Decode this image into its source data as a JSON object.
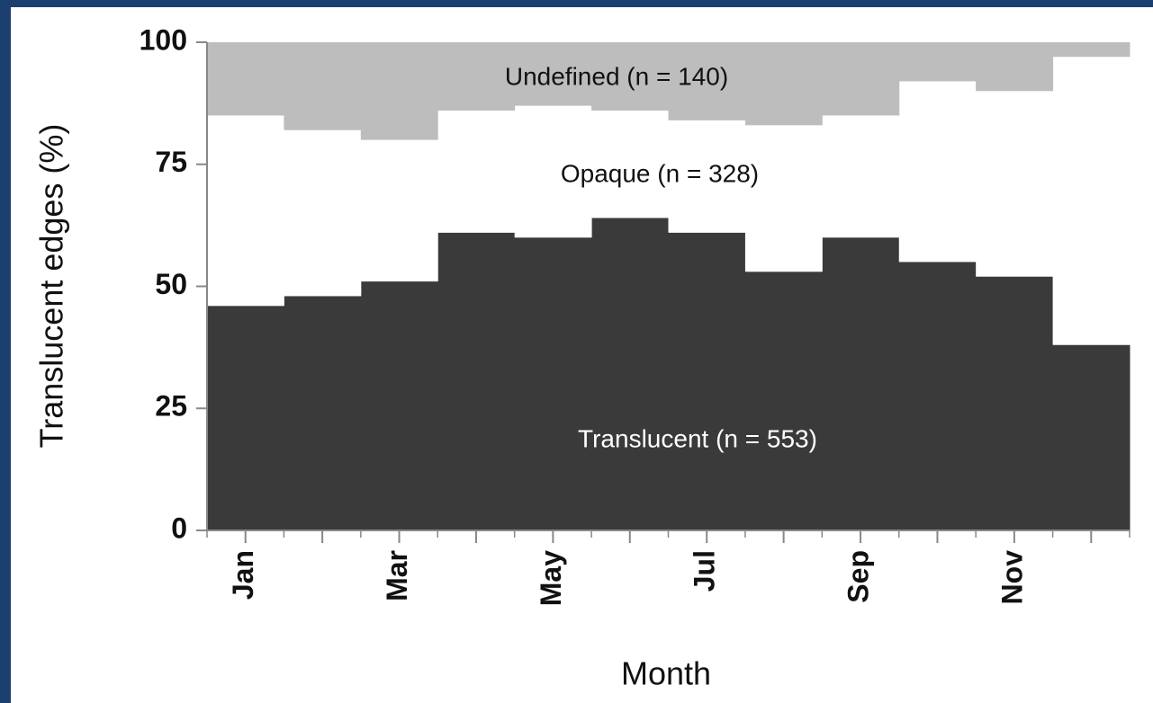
{
  "chart_data": {
    "type": "stacked_step_area",
    "xlabel": "Month",
    "ylabel": "Translucent edges (%)",
    "categories": [
      "Jan",
      null,
      "Mar",
      null,
      "May",
      null,
      "Jul",
      null,
      "Sep",
      null,
      "Nov",
      null
    ],
    "series": [
      {
        "name": "Translucent (n = 553)",
        "color": "#3a3a3a",
        "values": [
          46,
          48,
          51,
          61,
          60,
          64,
          61,
          53,
          60,
          55,
          52,
          38
        ]
      },
      {
        "name": "Opaque (n = 328)",
        "color": "#ffffff",
        "values": [
          39,
          34,
          29,
          25,
          27,
          22,
          23,
          30,
          25,
          37,
          38,
          59
        ]
      },
      {
        "name": "Undefined (n = 140)",
        "color": "#bdbdbd",
        "values": [
          15,
          18,
          20,
          14,
          13,
          14,
          16,
          17,
          15,
          8,
          10,
          3
        ]
      }
    ],
    "ylim": [
      0,
      100
    ],
    "yticks": [
      0,
      25,
      50,
      75,
      100
    ]
  }
}
